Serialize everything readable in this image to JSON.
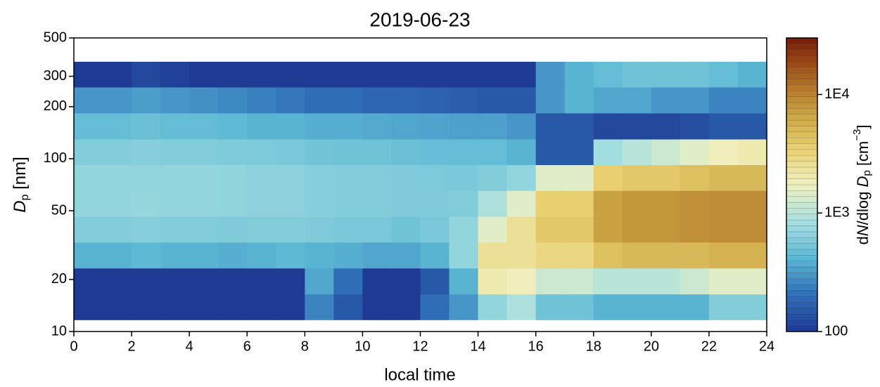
{
  "chart_data": {
    "type": "heatmap",
    "title": "2019-06-23",
    "xlabel": "local time",
    "ylabel": [
      "D",
      "p",
      " [nm]"
    ],
    "colorbar_label": [
      "d",
      "N",
      "/dlog ",
      "D",
      "p",
      " [cm",
      "−3",
      "]"
    ],
    "x": [
      0,
      1,
      2,
      3,
      4,
      5,
      6,
      7,
      8,
      9,
      10,
      11,
      12,
      13,
      14,
      15,
      16,
      17,
      18,
      19,
      20,
      21,
      22,
      23,
      24
    ],
    "y": [
      11.7,
      16.5,
      23.3,
      32.9,
      46.4,
      65.5,
      92.4,
      130,
      184,
      260,
      364
    ],
    "z": [
      [
        100,
        100,
        100,
        100,
        100,
        100,
        100,
        100,
        250,
        150,
        100,
        100,
        200,
        300,
        700,
        900,
        500,
        500,
        400,
        400,
        400,
        400,
        600,
        600
      ],
      [
        100,
        100,
        100,
        100,
        100,
        100,
        100,
        100,
        350,
        200,
        100,
        100,
        150,
        400,
        2000,
        1800,
        1200,
        1200,
        1000,
        1000,
        1000,
        1200,
        1500,
        1500
      ],
      [
        400,
        400,
        420,
        400,
        400,
        380,
        400,
        420,
        400,
        380,
        350,
        350,
        400,
        700,
        2500,
        2500,
        3000,
        3000,
        4500,
        5000,
        5000,
        5000,
        5500,
        5500
      ],
      [
        600,
        600,
        620,
        600,
        600,
        580,
        600,
        600,
        580,
        550,
        550,
        500,
        550,
        700,
        1500,
        2500,
        4000,
        4000,
        7000,
        8000,
        8000,
        8500,
        9000,
        9000
      ],
      [
        700,
        700,
        720,
        700,
        700,
        680,
        650,
        650,
        620,
        600,
        600,
        580,
        580,
        600,
        900,
        1500,
        3500,
        3500,
        7000,
        8000,
        8000,
        8500,
        9000,
        9000
      ],
      [
        700,
        700,
        700,
        700,
        700,
        680,
        650,
        650,
        620,
        600,
        600,
        580,
        560,
        550,
        600,
        700,
        1500,
        1500,
        3500,
        4000,
        4000,
        4500,
        5000,
        5000
      ],
      [
        600,
        600,
        620,
        600,
        600,
        580,
        560,
        550,
        520,
        500,
        500,
        480,
        460,
        450,
        450,
        400,
        150,
        150,
        800,
        1000,
        1200,
        1500,
        1800,
        2000
      ],
      [
        450,
        450,
        480,
        450,
        450,
        430,
        400,
        400,
        380,
        380,
        360,
        350,
        340,
        330,
        330,
        300,
        150,
        150,
        120,
        120,
        120,
        130,
        150,
        150
      ],
      [
        300,
        300,
        320,
        300,
        280,
        260,
        240,
        220,
        200,
        200,
        180,
        180,
        170,
        160,
        150,
        150,
        300,
        400,
        350,
        350,
        300,
        300,
        250,
        250
      ],
      [
        100,
        100,
        120,
        110,
        100,
        100,
        100,
        100,
        100,
        100,
        100,
        100,
        100,
        100,
        100,
        100,
        300,
        400,
        450,
        500,
        500,
        500,
        450,
        400
      ]
    ],
    "xlim": [
      0,
      24
    ],
    "xticks": [
      0,
      2,
      4,
      6,
      8,
      10,
      12,
      14,
      16,
      18,
      20,
      22,
      24
    ],
    "ylim": [
      10,
      500
    ],
    "yticks": [
      10,
      20,
      50,
      100,
      200,
      300,
      500
    ],
    "ylog": true,
    "zlim": [
      100,
      30000
    ],
    "zlog": true,
    "zticks": [
      100,
      {
        "value": 1000,
        "label": "1E3"
      },
      {
        "value": 10000,
        "label": "1E4"
      }
    ],
    "colormap": [
      "#1f3a93",
      "#2f6fb8",
      "#5cb8d4",
      "#a8e0e0",
      "#f0f0c0",
      "#e8d070",
      "#c8a040",
      "#a86020",
      "#7a1c08"
    ]
  }
}
